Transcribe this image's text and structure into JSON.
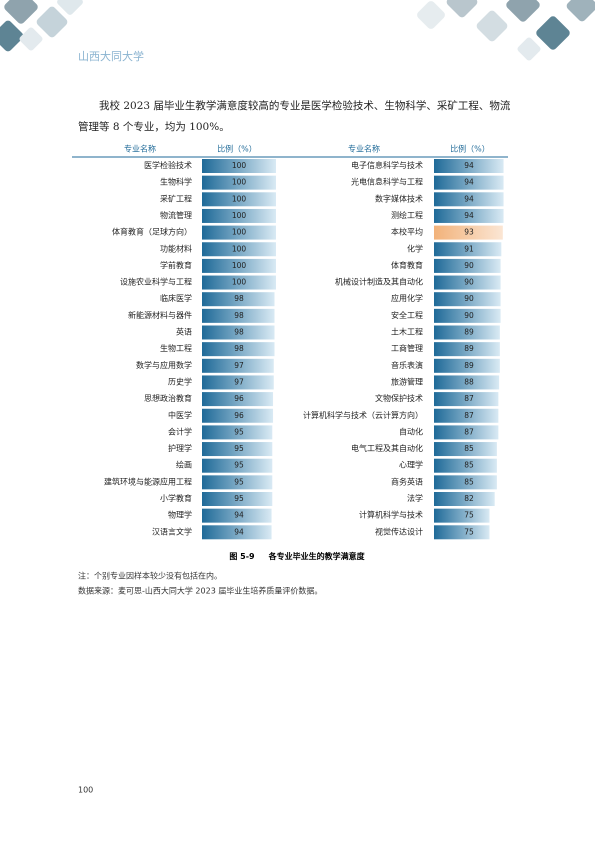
{
  "header": {
    "school": "山西大同大学"
  },
  "intro": "我校  2023 届毕业生教学满意度较高的专业是医学检验技术、生物科学、采矿工程、物流管理等 8 个专业，均为 100%。",
  "table": {
    "columns": [
      "专业名称",
      "比例（%）",
      "专业名称",
      "比例（%）"
    ],
    "bar_color": "#1f6a98",
    "left": [
      {
        "name": "医学检验技术",
        "value": 100
      },
      {
        "name": "生物科学",
        "value": 100
      },
      {
        "name": "采矿工程",
        "value": 100
      },
      {
        "name": "物流管理",
        "value": 100
      },
      {
        "name": "体育教育（足球方向）",
        "value": 100
      },
      {
        "name": "功能材料",
        "value": 100
      },
      {
        "name": "学前教育",
        "value": 100
      },
      {
        "name": "设施农业科学与工程",
        "value": 100
      },
      {
        "name": "临床医学",
        "value": 98
      },
      {
        "name": "新能源材料与器件",
        "value": 98
      },
      {
        "name": "英语",
        "value": 98
      },
      {
        "name": "生物工程",
        "value": 98
      },
      {
        "name": "数学与应用数学",
        "value": 97
      },
      {
        "name": "历史学",
        "value": 97
      },
      {
        "name": "思想政治教育",
        "value": 96
      },
      {
        "name": "中医学",
        "value": 96
      },
      {
        "name": "会计学",
        "value": 95
      },
      {
        "name": "护理学",
        "value": 95
      },
      {
        "name": "绘画",
        "value": 95
      },
      {
        "name": "建筑环境与能源应用工程",
        "value": 95
      },
      {
        "name": "小学教育",
        "value": 95
      },
      {
        "name": "物理学",
        "value": 94
      },
      {
        "name": "汉语言文学",
        "value": 94
      }
    ],
    "right": [
      {
        "name": "电子信息科学与技术",
        "value": 94
      },
      {
        "name": "光电信息科学与工程",
        "value": 94
      },
      {
        "name": "数字媒体技术",
        "value": 94
      },
      {
        "name": "测绘工程",
        "value": 94
      },
      {
        "name": "本校平均",
        "value": 93,
        "color": "#f2b27a"
      },
      {
        "name": "化学",
        "value": 91
      },
      {
        "name": "体育教育",
        "value": 90
      },
      {
        "name": "机械设计制造及其自动化",
        "value": 90
      },
      {
        "name": "应用化学",
        "value": 90
      },
      {
        "name": "安全工程",
        "value": 90
      },
      {
        "name": "土木工程",
        "value": 89
      },
      {
        "name": "工商管理",
        "value": 89
      },
      {
        "name": "音乐表演",
        "value": 89
      },
      {
        "name": "旅游管理",
        "value": 88
      },
      {
        "name": "文物保护技术",
        "value": 87
      },
      {
        "name": "计算机科学与技术（云计算方向）",
        "value": 87
      },
      {
        "name": "自动化",
        "value": 87
      },
      {
        "name": "电气工程及其自动化",
        "value": 85
      },
      {
        "name": "心理学",
        "value": 85
      },
      {
        "name": "商务英语",
        "value": 85
      },
      {
        "name": "法学",
        "value": 82
      },
      {
        "name": "计算机科学与技术",
        "value": 75
      },
      {
        "name": "视觉传达设计",
        "value": 75
      }
    ]
  },
  "figure": {
    "label": "图 5-9",
    "title": "各专业毕业生的教学满意度"
  },
  "notes": [
    "注：个别专业因样本较少没有包括在内。",
    "数据来源：麦可思-山西大同大学 2023 届毕业生培养质量评价数据。"
  ],
  "page_number": "100"
}
